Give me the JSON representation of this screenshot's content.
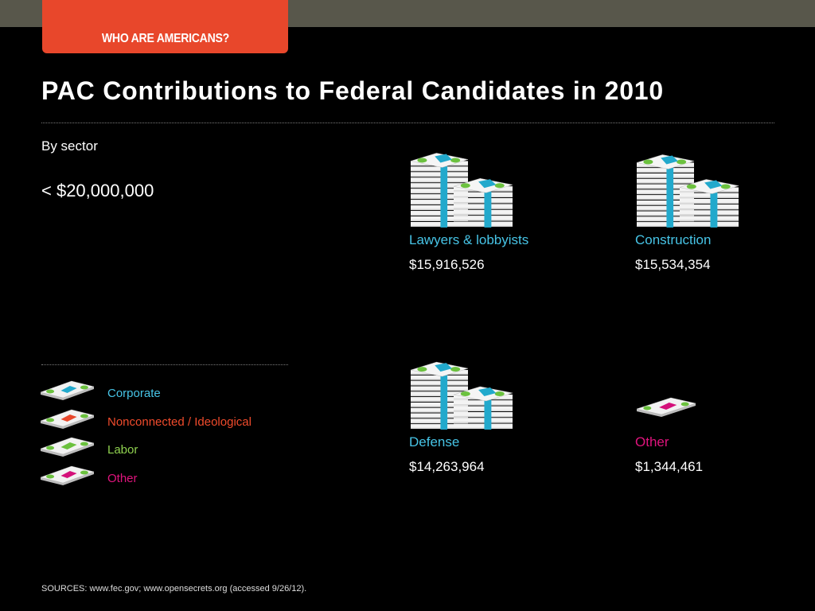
{
  "header": {
    "tab_label": "WHO ARE AMERICANS?"
  },
  "title": "PAC Contributions to Federal Candidates in 2010",
  "subtitle": "By sector",
  "scale_label": "< $20,000,000",
  "legend": [
    {
      "label": "Corporate",
      "color": "#47c4e6",
      "band": "#22a9cc"
    },
    {
      "label": "Nonconnected / Ideological",
      "color": "#f04b2c",
      "band": "#e8472b"
    },
    {
      "label": "Labor",
      "color": "#8fd14f",
      "band": "#6bc13e"
    },
    {
      "label": "Other",
      "color": "#e0147d",
      "band": "#d4107a"
    }
  ],
  "chart_data": {
    "type": "pictograph",
    "title": "PAC Contributions to Federal Candidates in 2010",
    "subtitle": "By sector",
    "categories": [
      "Lawyers & lobbyists",
      "Construction",
      "Defense",
      "Other"
    ],
    "values": [
      15916526,
      15534354,
      14263964,
      1344461
    ],
    "value_labels": [
      "$15,916,526",
      "$15,534,354",
      "$14,263,964",
      "$1,344,461"
    ],
    "series_type": [
      "Corporate",
      "Corporate",
      "Corporate",
      "Other"
    ],
    "scale_max": 20000000
  },
  "sources": "SOURCES: www.fec.gov; www.opensecrets.org (accessed 9/26/12)."
}
